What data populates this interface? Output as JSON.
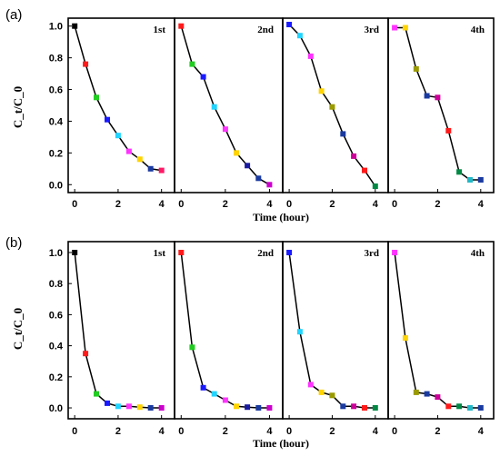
{
  "chart_data": [
    {
      "type": "line",
      "panel_label": "(a)",
      "ylabel": "C_t/C_0",
      "xlabel": "Time (hour)",
      "ylim": [
        -0.05,
        1.05
      ],
      "yticks": [
        "0.0",
        "0.2",
        "0.4",
        "0.6",
        "0.8",
        "1.0"
      ],
      "xticks": [
        "0",
        "2",
        "4"
      ],
      "xlim": [
        -0.3,
        4.6
      ],
      "subplots": [
        {
          "title": "1st",
          "x": [
            0,
            0.5,
            1,
            1.5,
            2,
            2.5,
            3,
            3.5,
            4
          ],
          "y": [
            1.0,
            0.76,
            0.55,
            0.41,
            0.31,
            0.21,
            0.16,
            0.1,
            0.09
          ]
        },
        {
          "title": "2nd",
          "x": [
            0,
            0.5,
            1,
            1.5,
            2,
            2.5,
            3,
            3.5,
            4
          ],
          "y": [
            1.0,
            0.76,
            0.68,
            0.49,
            0.35,
            0.2,
            0.12,
            0.04,
            0.0
          ]
        },
        {
          "title": "3rd",
          "x": [
            0,
            0.5,
            1,
            1.5,
            2,
            2.5,
            3,
            3.5,
            4
          ],
          "y": [
            1.01,
            0.94,
            0.81,
            0.59,
            0.49,
            0.32,
            0.18,
            0.09,
            -0.01
          ]
        },
        {
          "title": "4th",
          "x": [
            0,
            0.5,
            1,
            1.5,
            2,
            2.5,
            3,
            3.5,
            4
          ],
          "y": [
            0.99,
            0.99,
            0.73,
            0.56,
            0.55,
            0.34,
            0.08,
            0.03,
            0.03
          ]
        }
      ]
    },
    {
      "type": "line",
      "panel_label": "(b)",
      "ylabel": "C_t/C_0",
      "xlabel": "Time (hour)",
      "ylim": [
        -0.07,
        1.07
      ],
      "yticks": [
        "0.0",
        "0.2",
        "0.4",
        "0.6",
        "0.8",
        "1.0"
      ],
      "xticks": [
        "0",
        "2",
        "4"
      ],
      "xlim": [
        -0.3,
        4.6
      ],
      "subplots": [
        {
          "title": "1st",
          "x": [
            0,
            0.5,
            1,
            1.5,
            2,
            2.5,
            3,
            3.5,
            4
          ],
          "y": [
            1.0,
            0.35,
            0.09,
            0.03,
            0.01,
            0.01,
            0.005,
            0.0,
            0.0
          ]
        },
        {
          "title": "2nd",
          "x": [
            0,
            0.5,
            1,
            1.5,
            2,
            2.5,
            3,
            3.5,
            4
          ],
          "y": [
            1.0,
            0.39,
            0.13,
            0.09,
            0.05,
            0.01,
            0.005,
            0.0,
            0.0
          ]
        },
        {
          "title": "3rd",
          "x": [
            0,
            0.5,
            1,
            1.5,
            2,
            2.5,
            3,
            3.5,
            4
          ],
          "y": [
            1.0,
            0.49,
            0.15,
            0.1,
            0.08,
            0.01,
            0.01,
            0.0,
            0.0
          ]
        },
        {
          "title": "4th",
          "x": [
            0,
            0.5,
            1,
            1.5,
            2,
            2.5,
            3,
            3.5,
            4
          ],
          "y": [
            1.0,
            0.45,
            0.1,
            0.09,
            0.07,
            0.01,
            0.01,
            0.0,
            0.0
          ]
        }
      ]
    }
  ],
  "marker_colors": [
    "#000000",
    "#ff1a1a",
    "#22cc22",
    "#1a1aff",
    "#22d4ff",
    "#ff33ff",
    "#ffd400",
    "#1a3aa0",
    "#ff1a66"
  ],
  "marker_colors_a2": [
    "#ff1a1a",
    "#22cc22",
    "#1a1aff",
    "#22d4ff",
    "#ff33ff",
    "#ffd400",
    "#1a1aa0",
    "#1a3aa0",
    "#cc00cc"
  ],
  "marker_colors_a3": [
    "#1a1aff",
    "#22d4ff",
    "#ff33ff",
    "#ffd400",
    "#999900",
    "#1a3aa0",
    "#cc0099",
    "#ff1a1a",
    "#008844"
  ],
  "marker_colors_a4": [
    "#ff33ff",
    "#ffd400",
    "#999900",
    "#1a3aa0",
    "#cc0099",
    "#ff1a1a",
    "#008844",
    "#22b8c8",
    "#1a3aa0"
  ],
  "marker_colors_b": [
    "#000000",
    "#ff1a1a",
    "#22cc22",
    "#1a1aff",
    "#22d4ff",
    "#ff33ff",
    "#ffd400",
    "#1a3aa0",
    "#cc00cc"
  ],
  "marker_colors_b2": [
    "#ff1a1a",
    "#22cc22",
    "#1a1aff",
    "#22d4ff",
    "#ff33ff",
    "#ffd400",
    "#1a1aa0",
    "#1a3aa0",
    "#cc00cc"
  ],
  "marker_colors_b3": [
    "#1a1aff",
    "#22d4ff",
    "#ff33ff",
    "#ffd400",
    "#999900",
    "#1a3aa0",
    "#cc0099",
    "#ff1a1a",
    "#008844"
  ],
  "marker_colors_b4": [
    "#ff33ff",
    "#ffd400",
    "#999900",
    "#1a3aa0",
    "#cc0099",
    "#ff1a1a",
    "#008844",
    "#22b8c8",
    "#1a3aa0"
  ]
}
